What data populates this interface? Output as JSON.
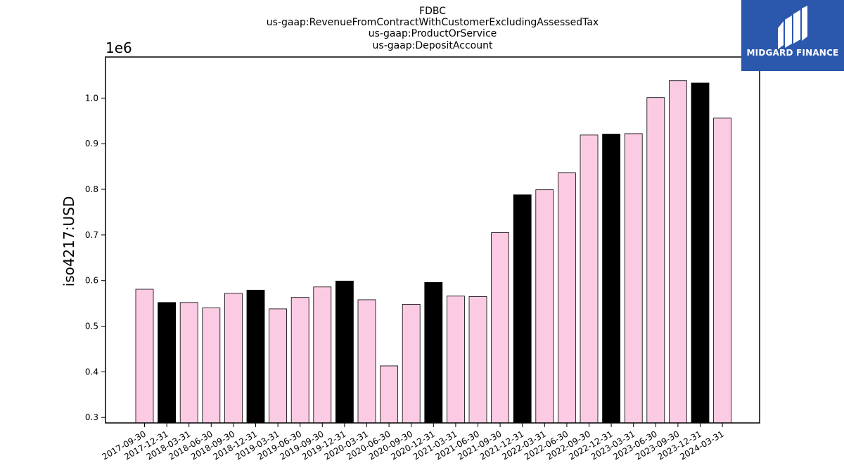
{
  "chart_data": {
    "type": "bar",
    "title_lines": [
      "FDBC",
      "us-gaap:RevenueFromContractWithCustomerExcludingAssessedTax",
      "us-gaap:ProductOrService",
      "us-gaap:DepositAccount"
    ],
    "ylabel": "iso4217:USD",
    "y_multiplier": "1e6",
    "ylim": [
      0.288,
      1.09
    ],
    "yticks": [
      0.3,
      0.4,
      0.5,
      0.6,
      0.7,
      0.8,
      0.9,
      1.0
    ],
    "ytick_labels": [
      "0.3",
      "0.4",
      "0.5",
      "0.6",
      "0.7",
      "0.8",
      "0.9",
      "1.0"
    ],
    "categories": [
      "2017-09-30",
      "2017-12-31",
      "2018-03-31",
      "2018-06-30",
      "2018-09-30",
      "2018-12-31",
      "2019-03-31",
      "2019-06-30",
      "2019-09-30",
      "2019-12-31",
      "2020-03-31",
      "2020-06-30",
      "2020-09-30",
      "2020-12-31",
      "2021-03-31",
      "2021-06-30",
      "2021-09-30",
      "2021-12-31",
      "2022-03-31",
      "2022-06-30",
      "2022-09-30",
      "2022-12-31",
      "2023-03-31",
      "2023-06-30",
      "2023-09-30",
      "2023-12-31",
      "2024-03-31"
    ],
    "values": [
      0.581,
      0.552,
      0.552,
      0.54,
      0.572,
      0.579,
      0.538,
      0.563,
      0.586,
      0.599,
      0.558,
      0.413,
      0.548,
      0.596,
      0.566,
      0.565,
      0.705,
      0.788,
      0.799,
      0.836,
      0.919,
      0.921,
      0.922,
      1.001,
      1.038,
      1.033,
      0.956
    ],
    "bar_colors": [
      "#fbcbe4",
      "#000000",
      "#fbcbe4",
      "#fbcbe4",
      "#fbcbe4",
      "#000000",
      "#fbcbe4",
      "#fbcbe4",
      "#fbcbe4",
      "#000000",
      "#fbcbe4",
      "#fbcbe4",
      "#fbcbe4",
      "#000000",
      "#fbcbe4",
      "#fbcbe4",
      "#fbcbe4",
      "#000000",
      "#fbcbe4",
      "#fbcbe4",
      "#fbcbe4",
      "#000000",
      "#fbcbe4",
      "#fbcbe4",
      "#fbcbe4",
      "#000000",
      "#fbcbe4"
    ],
    "grid": false
  },
  "logo": {
    "text": "MIDGARD FINANCE",
    "background": "#2b58ad",
    "icon": "midgard-logo-mark"
  }
}
